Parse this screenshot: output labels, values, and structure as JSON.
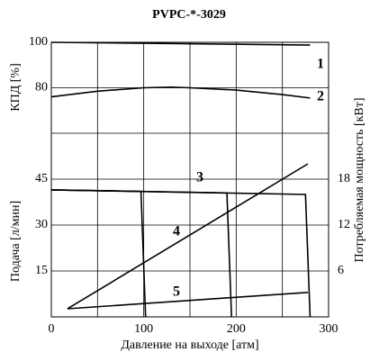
{
  "chart_data": {
    "type": "line",
    "title": "PVPC-*-3029",
    "xlabel": "Давление на выходе [атм]",
    "xlim": [
      0,
      300
    ],
    "xticks": [
      0,
      100,
      200,
      300
    ],
    "xminor": [
      50,
      150,
      250
    ],
    "panels": [
      {
        "ylabel": "КПД [%]",
        "ylim": [
          60,
          100
        ],
        "yticks": [
          80,
          100
        ],
        "series": [
          {
            "name": "1",
            "x": [
              0,
              280
            ],
            "values": [
              100,
              98.8
            ]
          },
          {
            "name": "2",
            "x": [
              0,
              50,
              100,
              130,
              150,
              200,
              250,
              280
            ],
            "values": [
              76,
              78.5,
              80,
              80.3,
              80,
              79,
              77,
              75.5
            ]
          }
        ]
      },
      {
        "ylabel": "Подача [л/мин]",
        "y2label": "Потребляемая мощность [кВт]",
        "ylim": [
          0,
          60
        ],
        "yticks": [
          15,
          30,
          45
        ],
        "y2lim": [
          0,
          24
        ],
        "y2ticks": [
          6,
          12,
          18
        ],
        "series": [
          {
            "name": "3",
            "x": [
              0,
              97,
              102
            ],
            "values": [
              41.5,
              41,
              0
            ]
          },
          {
            "x": [
              0,
              190,
              195
            ],
            "values": [
              41.5,
              40.5,
              0
            ]
          },
          {
            "x": [
              0,
              275,
              280
            ],
            "values": [
              41.5,
              40,
              0
            ]
          },
          {
            "name": "4",
            "axis": "y2",
            "x": [
              17.5,
              277.6
            ],
            "values": [
              1.06,
              20
            ]
          },
          {
            "name": "5",
            "axis": "y2",
            "x": [
              17.5,
              277.6
            ],
            "values": [
              1.06,
              3.2
            ]
          }
        ]
      }
    ]
  }
}
